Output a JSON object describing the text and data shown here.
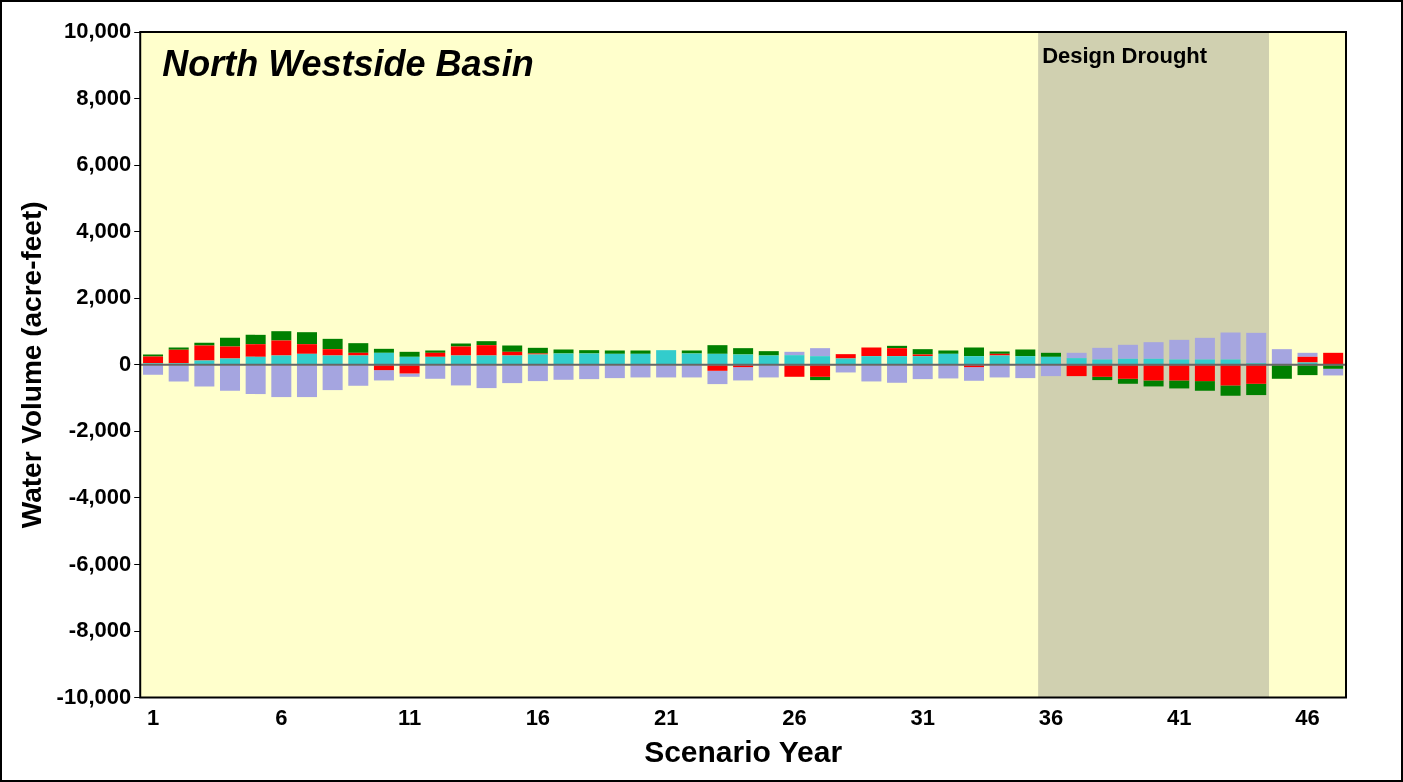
{
  "chart_data": {
    "type": "bar",
    "title": "North Westside Basin",
    "xlabel": "Scenario Year",
    "ylabel": "Water Volume (acre-feet)",
    "stacked": true,
    "x": [
      1,
      2,
      3,
      4,
      5,
      6,
      7,
      8,
      9,
      10,
      11,
      12,
      13,
      14,
      15,
      16,
      17,
      18,
      19,
      20,
      21,
      22,
      23,
      24,
      25,
      26,
      27,
      28,
      29,
      30,
      31,
      32,
      33,
      34,
      35,
      36,
      37,
      38,
      39,
      40,
      41,
      42,
      43,
      44,
      45,
      46,
      47
    ],
    "xlim": [
      0.5,
      47.5
    ],
    "xticks": [
      1,
      6,
      11,
      16,
      21,
      26,
      31,
      36,
      41,
      46
    ],
    "series": [
      {
        "color": "#33cccc",
        "values": [
          50,
          50,
          130,
          190,
          240,
          280,
          330,
          280,
          280,
          360,
          240,
          240,
          280,
          280,
          280,
          310,
          340,
          340,
          330,
          330,
          440,
          340,
          330,
          310,
          280,
          290,
          260,
          190,
          260,
          260,
          260,
          330,
          260,
          280,
          260,
          240,
          200,
          160,
          180,
          180,
          160,
          160,
          160,
          50,
          null,
          70,
          null
        ]
      },
      {
        "color": "#ff0000",
        "values": [
          200,
          400,
          450,
          360,
          380,
          450,
          290,
          190,
          80,
          -160,
          -260,
          120,
          270,
          310,
          110,
          30,
          null,
          null,
          null,
          null,
          null,
          null,
          -180,
          -70,
          null,
          -360,
          -360,
          130,
          260,
          240,
          50,
          null,
          -70,
          50,
          null,
          null,
          -340,
          -360,
          -420,
          -470,
          -470,
          -490,
          -620,
          -570,
          null,
          170,
          360
        ]
      },
      {
        "color": "#008000",
        "values": [
          60,
          70,
          80,
          260,
          280,
          280,
          360,
          310,
          290,
          120,
          150,
          70,
          90,
          120,
          190,
          170,
          120,
          100,
          100,
          100,
          null,
          90,
          260,
          190,
          130,
          null,
          -100,
          null,
          null,
          70,
          160,
          100,
          260,
          70,
          200,
          120,
          null,
          -100,
          -150,
          -180,
          -240,
          -290,
          -310,
          -340,
          -420,
          -310,
          -120
        ]
      },
      {
        "color": "#a5a5e0",
        "values": [
          -300,
          -500,
          -650,
          -780,
          -880,
          -970,
          -970,
          -760,
          -630,
          -310,
          -100,
          -420,
          -620,
          -700,
          -550,
          -490,
          -450,
          -430,
          -400,
          -380,
          -380,
          -380,
          -400,
          -400,
          -380,
          100,
          240,
          -230,
          -500,
          -540,
          -430,
          -410,
          -410,
          -380,
          -400,
          -340,
          160,
          350,
          420,
          500,
          590,
          650,
          810,
          910,
          470,
          120,
          -200
        ]
      }
    ],
    "ylim": [
      -10000,
      10000
    ],
    "yticks": [
      {
        "value": -10000,
        "label": "-10,000"
      },
      {
        "value": -8000,
        "label": "-8,000"
      },
      {
        "value": -6000,
        "label": "-6,000"
      },
      {
        "value": -4000,
        "label": "-4,000"
      },
      {
        "value": -2000,
        "label": "-2,000"
      },
      0,
      {
        "value": 2000,
        "label": "2,000"
      },
      {
        "value": 4000,
        "label": "4,000"
      },
      {
        "value": 6000,
        "label": "6,000"
      },
      {
        "value": 8000,
        "label": "8,000"
      },
      {
        "value": 10000,
        "label": "10,000"
      }
    ],
    "ref_lines": [
      {
        "axis": "y",
        "value": 0,
        "color": "#666666"
      }
    ],
    "bands": [
      {
        "axis": "x",
        "from": 35.5,
        "to": 44.5,
        "label": "Design Drought",
        "color": "#d0d0b0"
      }
    ],
    "legend": false,
    "grid": false
  }
}
